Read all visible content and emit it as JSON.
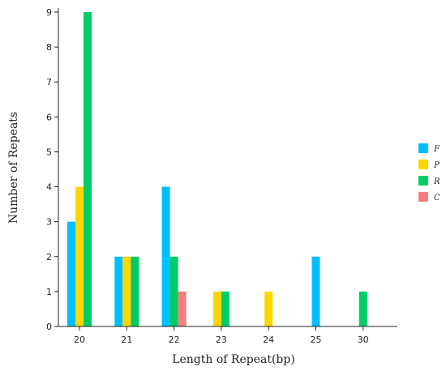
{
  "chart_data": {
    "type": "bar",
    "xlabel": "Length of Repeat(bp)",
    "ylabel": "Number of Repeats",
    "categories": [
      "20",
      "21",
      "22",
      "23",
      "24",
      "25",
      "30"
    ],
    "ylim": [
      0,
      9
    ],
    "yticks": [
      "0",
      "1",
      "2",
      "3",
      "4",
      "5",
      "6",
      "7",
      "8",
      "9"
    ],
    "grid": false,
    "legend_position": "right",
    "series": [
      {
        "name": "F",
        "color": "#00BFFF",
        "values": [
          3,
          2,
          4,
          0,
          0,
          2,
          0
        ]
      },
      {
        "name": "P",
        "color": "#FFD700",
        "values": [
          4,
          2,
          0,
          1,
          1,
          0,
          0
        ]
      },
      {
        "name": "R",
        "color": "#00CC66",
        "values": [
          9,
          2,
          2,
          1,
          0,
          0,
          1
        ]
      },
      {
        "name": "C",
        "color": "#F08080",
        "values": [
          0,
          0,
          1,
          0,
          0,
          0,
          0
        ]
      }
    ]
  }
}
